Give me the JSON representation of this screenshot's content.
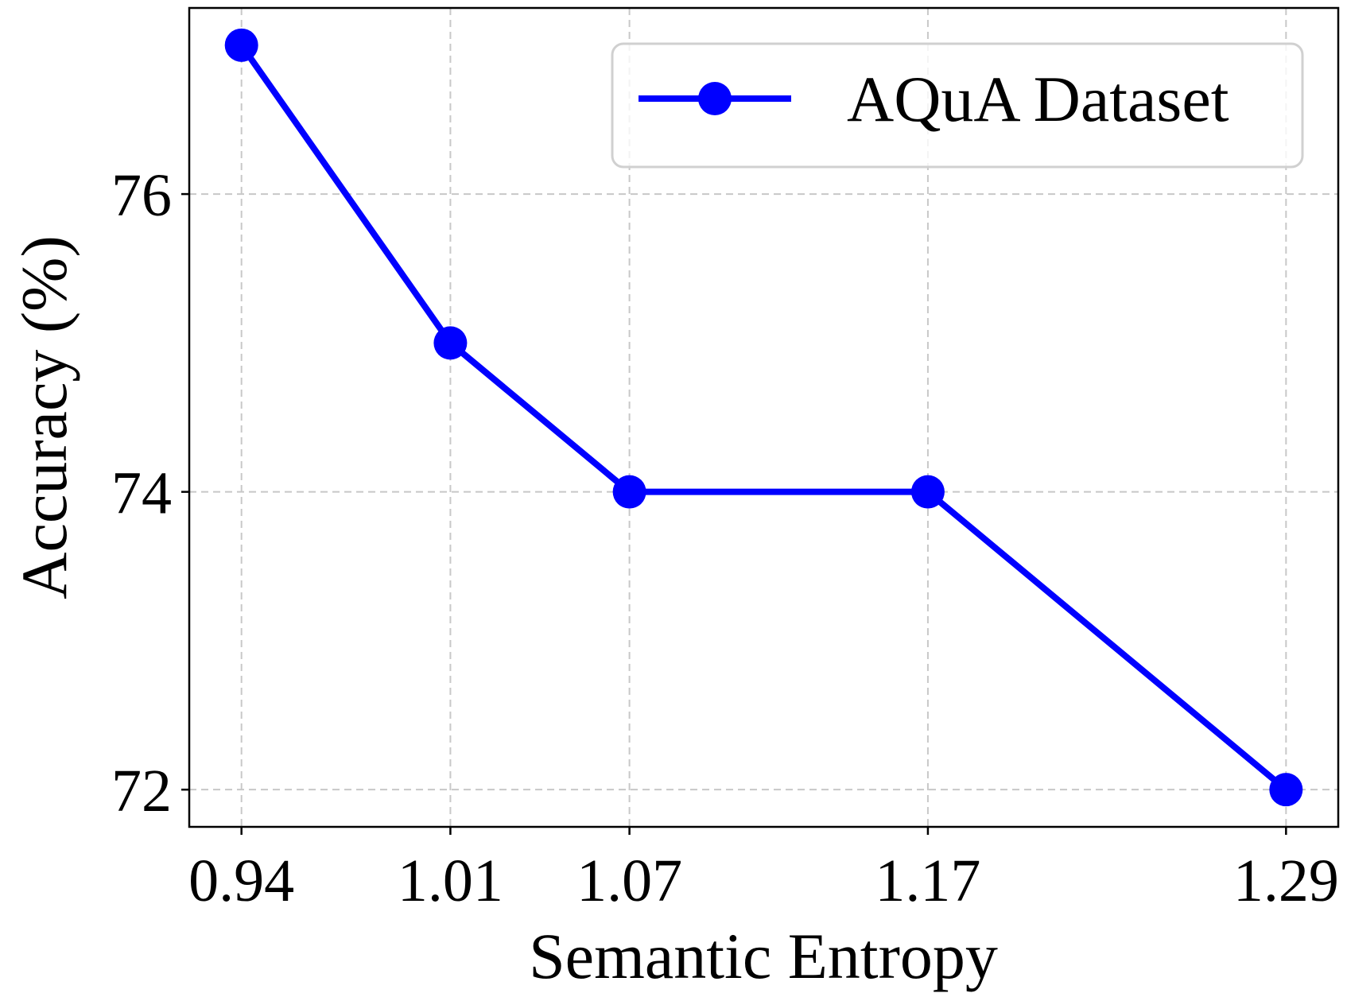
{
  "chart_data": {
    "type": "line",
    "xlabel": "Semantic Entropy",
    "ylabel": "Accuracy (%)",
    "x": [
      "0.94",
      "1.01",
      "1.07",
      "1.17",
      "1.29"
    ],
    "x_values": [
      0.94,
      1.01,
      1.07,
      1.17,
      1.29
    ],
    "xlim": [
      0.9225,
      1.3075
    ],
    "ylim": [
      71.75,
      77.25
    ],
    "yticks": [
      72,
      74,
      76
    ],
    "grid": true,
    "legend_position": "top-right",
    "series": [
      {
        "name": "AQuA Dataset",
        "color": "#0000ff",
        "marker": "circle",
        "values": [
          77,
          75,
          74,
          74,
          72
        ]
      }
    ]
  }
}
